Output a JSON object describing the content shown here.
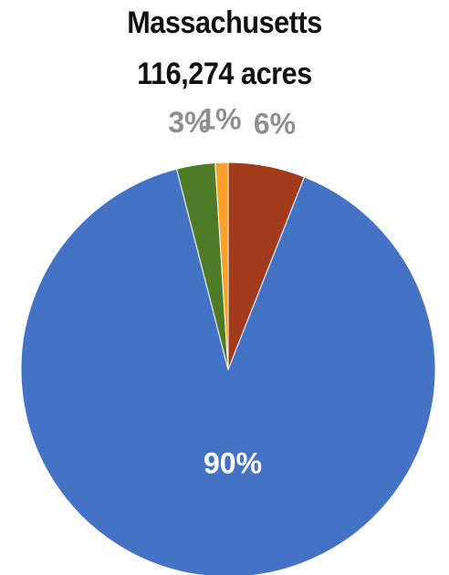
{
  "chart_data": {
    "type": "pie",
    "title": "Massachusetts",
    "subtitle": "116,274 acres",
    "start_angle_deg": 0,
    "slices": [
      {
        "value": 6,
        "label": "6%",
        "color": "#a23a1c",
        "label_color": "#8f8f8f"
      },
      {
        "value": 90,
        "label": "90%",
        "color": "#4472c4",
        "label_color": "#ffffff"
      },
      {
        "value": 3,
        "label": "3%",
        "color": "#4f7a28",
        "label_color": "#8f8f8f"
      },
      {
        "value": 1,
        "label": "1%",
        "color": "#f7a12a",
        "label_color": "#8f8f8f"
      }
    ],
    "legend": "none"
  }
}
